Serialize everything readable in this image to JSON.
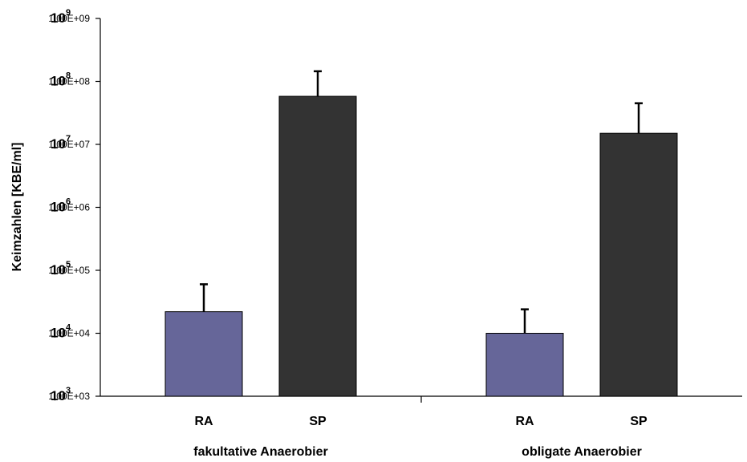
{
  "chart_data": {
    "type": "bar",
    "ylabel": "Keimzahlen [KBE/ml]",
    "yscale": "log",
    "ylim": [
      1000,
      1000000000
    ],
    "yticks": [
      {
        "value": 1000000000,
        "label": "1,00E+09",
        "base": "10",
        "exp": "9"
      },
      {
        "value": 100000000,
        "label": "1,00E+08",
        "base": "10",
        "exp": "8"
      },
      {
        "value": 10000000,
        "label": "1,00E+07",
        "base": "10",
        "exp": "7"
      },
      {
        "value": 1000000,
        "label": "1,00E+06",
        "base": "10",
        "exp": "6"
      },
      {
        "value": 100000,
        "label": "1,00E+05",
        "base": "10",
        "exp": "5"
      },
      {
        "value": 10000,
        "label": "1,00E+04",
        "base": "10",
        "exp": "4"
      },
      {
        "value": 1000,
        "label": "1,00E+03",
        "base": "10",
        "exp": "3"
      }
    ],
    "groups": [
      {
        "label": "fakultative Anaerobier",
        "bars": [
          {
            "category": "RA",
            "value": 22000,
            "error_upper": 60000,
            "color": "#666699"
          },
          {
            "category": "SP",
            "value": 58000000,
            "error_upper": 145000000,
            "color": "#333333"
          }
        ]
      },
      {
        "label": "obligate Anaerobier",
        "bars": [
          {
            "category": "RA",
            "value": 10000,
            "error_upper": 24000,
            "color": "#666699"
          },
          {
            "category": "SP",
            "value": 15000000,
            "error_upper": 45000000,
            "color": "#333333"
          }
        ]
      }
    ],
    "grid": false,
    "legend": "none"
  }
}
